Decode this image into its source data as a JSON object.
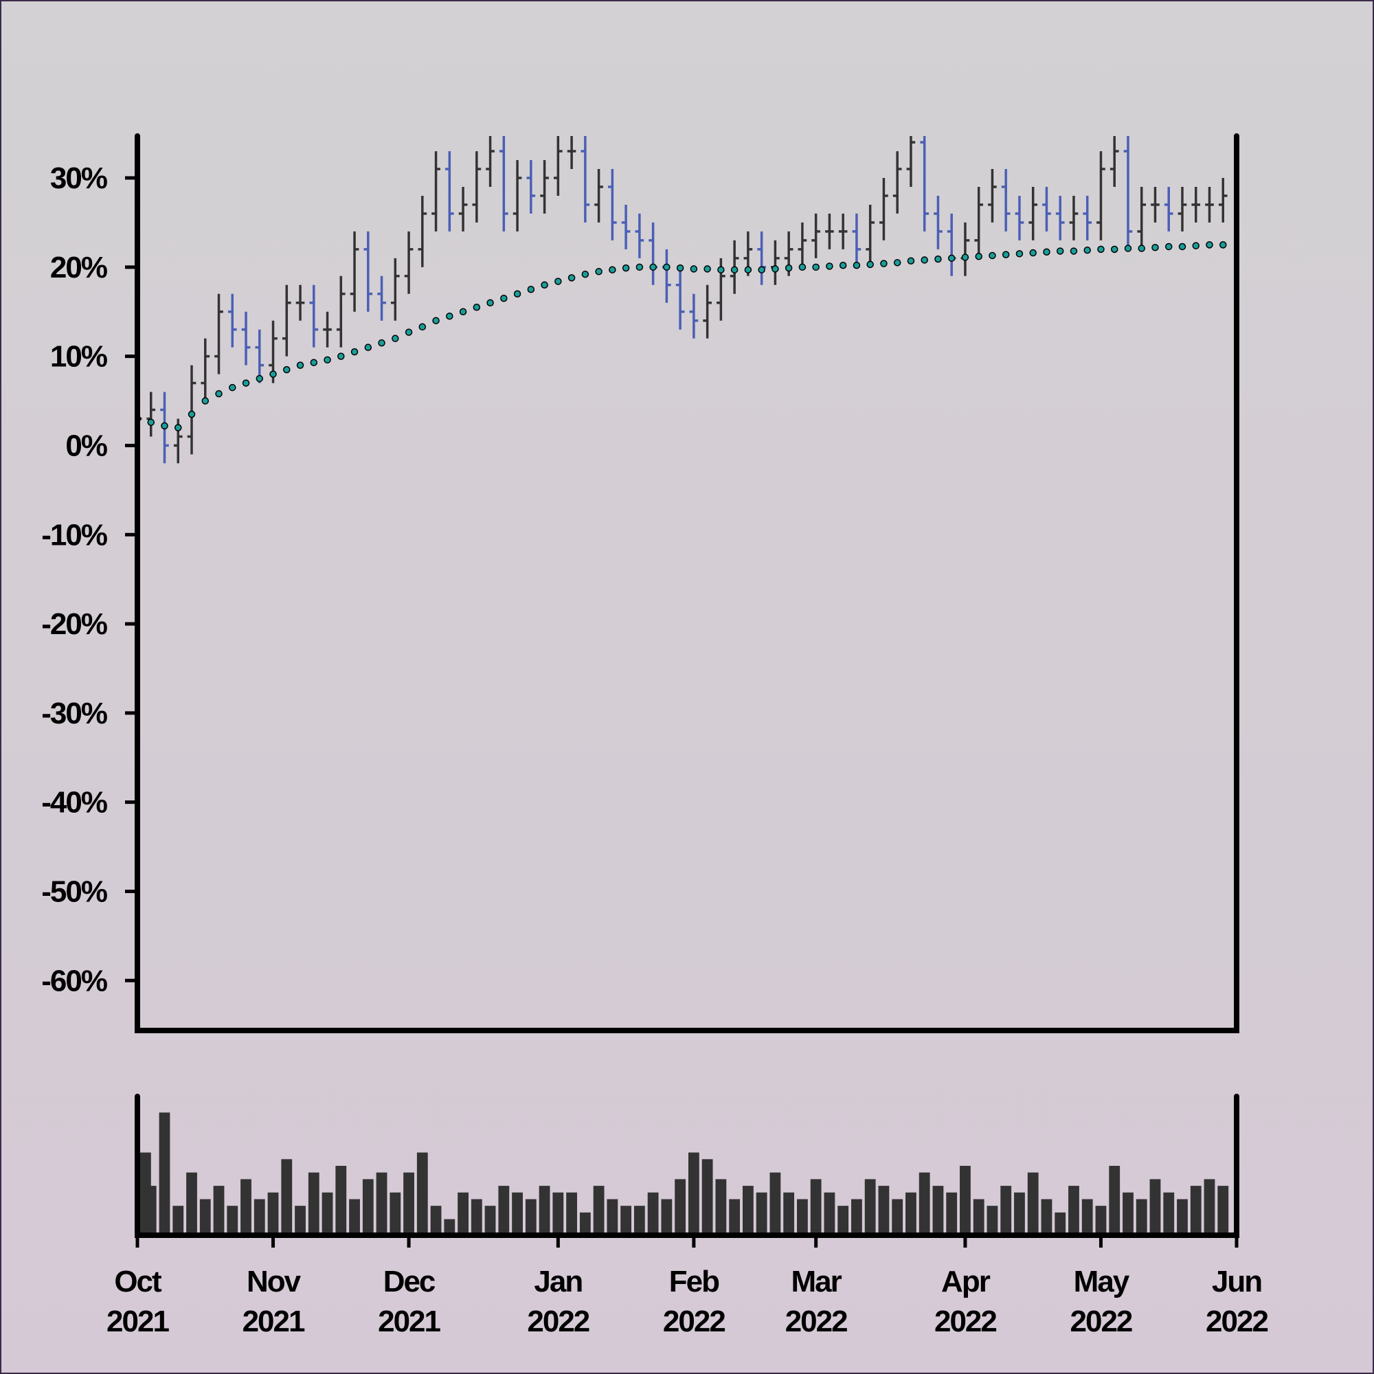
{
  "chart_data": {
    "type": "ohlc",
    "categories": [
      "Oct 2021",
      null,
      null,
      null,
      null,
      null,
      null,
      null,
      null,
      null,
      "Nov 2021",
      null,
      null,
      null,
      null,
      null,
      null,
      null,
      null,
      null,
      "Dec 2021",
      null,
      null,
      null,
      null,
      null,
      null,
      null,
      null,
      null,
      null,
      "Jan 2022",
      null,
      null,
      null,
      null,
      null,
      null,
      null,
      null,
      null,
      "Feb 2022",
      null,
      null,
      null,
      null,
      null,
      null,
      null,
      null,
      "Mar 2022",
      null,
      null,
      null,
      null,
      null,
      null,
      null,
      null,
      null,
      null,
      "Apr 2022",
      null,
      null,
      null,
      null,
      null,
      null,
      null,
      null,
      null,
      "May 2022",
      null,
      null,
      null,
      null,
      null,
      null,
      null,
      null,
      null,
      "Jun 2022"
    ],
    "open": [
      2,
      3,
      4,
      0,
      1,
      7,
      10,
      15,
      13,
      11,
      9,
      12,
      16,
      16,
      13,
      13,
      17,
      22,
      17,
      16,
      19,
      22,
      26,
      31,
      26,
      27,
      31,
      33,
      26,
      30,
      28,
      30,
      33,
      33,
      27,
      29,
      25,
      24,
      23,
      20,
      18,
      15,
      14,
      16,
      19,
      21,
      22,
      20,
      21,
      22,
      23,
      24,
      24,
      24,
      22,
      25,
      28,
      31,
      34,
      26,
      24,
      21,
      23,
      27,
      29,
      26,
      25,
      27,
      26,
      25,
      26,
      25,
      31,
      33,
      24,
      27,
      27,
      26,
      27,
      27,
      27,
      null
    ],
    "high": [
      5,
      6,
      6,
      3,
      9,
      12,
      17,
      17,
      15,
      13,
      14,
      18,
      18,
      18,
      15,
      19,
      24,
      24,
      19,
      21,
      24,
      28,
      33,
      33,
      29,
      33,
      35,
      35,
      32,
      32,
      32,
      35,
      35,
      35,
      31,
      31,
      27,
      26,
      25,
      22,
      20,
      17,
      18,
      21,
      23,
      24,
      24,
      23,
      24,
      25,
      26,
      26,
      26,
      26,
      27,
      30,
      33,
      36,
      36,
      28,
      26,
      25,
      29,
      31,
      31,
      28,
      29,
      29,
      28,
      28,
      28,
      33,
      35,
      35,
      29,
      29,
      29,
      29,
      29,
      29,
      30,
      null
    ],
    "low": [
      0,
      1,
      -2,
      -2,
      -1,
      5,
      8,
      11,
      9,
      7,
      7,
      10,
      14,
      11,
      11,
      11,
      15,
      15,
      14,
      14,
      17,
      20,
      24,
      24,
      24,
      25,
      29,
      24,
      24,
      26,
      26,
      28,
      31,
      25,
      25,
      23,
      22,
      21,
      18,
      16,
      13,
      12,
      12,
      14,
      17,
      19,
      18,
      18,
      19,
      20,
      21,
      22,
      22,
      20,
      20,
      23,
      26,
      29,
      24,
      22,
      19,
      19,
      21,
      25,
      24,
      23,
      23,
      24,
      23,
      23,
      23,
      23,
      29,
      22,
      22,
      25,
      24,
      24,
      25,
      25,
      25,
      null
    ],
    "close": [
      3,
      4,
      0,
      1,
      7,
      10,
      15,
      13,
      11,
      9,
      12,
      16,
      16,
      13,
      13,
      17,
      22,
      17,
      16,
      19,
      22,
      26,
      31,
      26,
      27,
      31,
      33,
      26,
      30,
      28,
      30,
      33,
      33,
      27,
      29,
      25,
      24,
      23,
      20,
      18,
      15,
      14,
      16,
      19,
      21,
      22,
      20,
      21,
      22,
      23,
      24,
      24,
      24,
      22,
      25,
      28,
      31,
      34,
      26,
      24,
      21,
      23,
      27,
      29,
      26,
      25,
      27,
      26,
      25,
      26,
      25,
      31,
      33,
      24,
      27,
      27,
      26,
      27,
      27,
      27,
      28,
      null
    ],
    "up_color": "#333333",
    "down_color": "#4a5fb5",
    "moving_average": {
      "color": "#1a9e9a",
      "values": [
        3,
        2.6,
        2.2,
        2,
        3.5,
        5,
        5.8,
        6.5,
        7,
        7.5,
        8,
        8.5,
        9,
        9.3,
        9.6,
        10,
        10.5,
        11,
        11.5,
        12,
        12.7,
        13.3,
        14,
        14.5,
        15,
        15.5,
        16,
        16.5,
        17,
        17.5,
        18,
        18.4,
        18.8,
        19.2,
        19.5,
        19.7,
        19.9,
        20,
        20,
        20,
        19.9,
        19.8,
        19.8,
        19.7,
        19.7,
        19.7,
        19.7,
        19.8,
        19.9,
        20,
        20,
        20.1,
        20.2,
        20.2,
        20.3,
        20.4,
        20.5,
        20.7,
        20.8,
        20.9,
        21,
        21.1,
        21.2,
        21.3,
        21.4,
        21.5,
        21.6,
        21.7,
        21.8,
        21.8,
        21.9,
        22,
        22,
        22.1,
        22.1,
        22.2,
        22.3,
        22.3,
        22.4,
        22.5,
        22.5,
        null
      ]
    },
    "volume": {
      "color": "#333333",
      "ylim": [
        0,
        100
      ],
      "values": [
        60,
        35,
        90,
        20,
        45,
        25,
        35,
        20,
        40,
        25,
        30,
        55,
        20,
        45,
        30,
        50,
        25,
        40,
        45,
        30,
        45,
        60,
        20,
        10,
        30,
        25,
        20,
        35,
        30,
        25,
        35,
        30,
        30,
        15,
        35,
        25,
        20,
        20,
        30,
        25,
        40,
        60,
        55,
        40,
        25,
        35,
        30,
        45,
        30,
        25,
        40,
        30,
        20,
        25,
        40,
        35,
        25,
        30,
        45,
        35,
        30,
        50,
        25,
        20,
        35,
        30,
        45,
        25,
        15,
        35,
        25,
        20,
        50,
        30,
        25,
        40,
        30,
        25,
        35,
        40,
        35,
        null
      ]
    },
    "ylim": [
      -65.6,
      34.7
    ],
    "yticks": [
      {
        "value": 30,
        "label": "30%"
      },
      {
        "value": 20,
        "label": "20%"
      },
      {
        "value": 10,
        "label": "10%"
      },
      {
        "value": 0,
        "label": "0%"
      },
      {
        "value": -10,
        "label": "-10%"
      },
      {
        "value": -20,
        "label": "-20%"
      },
      {
        "value": -30,
        "label": "-30%"
      },
      {
        "value": -40,
        "label": "-40%"
      },
      {
        "value": -50,
        "label": "-50%"
      },
      {
        "value": -60,
        "label": "-60%"
      }
    ]
  }
}
